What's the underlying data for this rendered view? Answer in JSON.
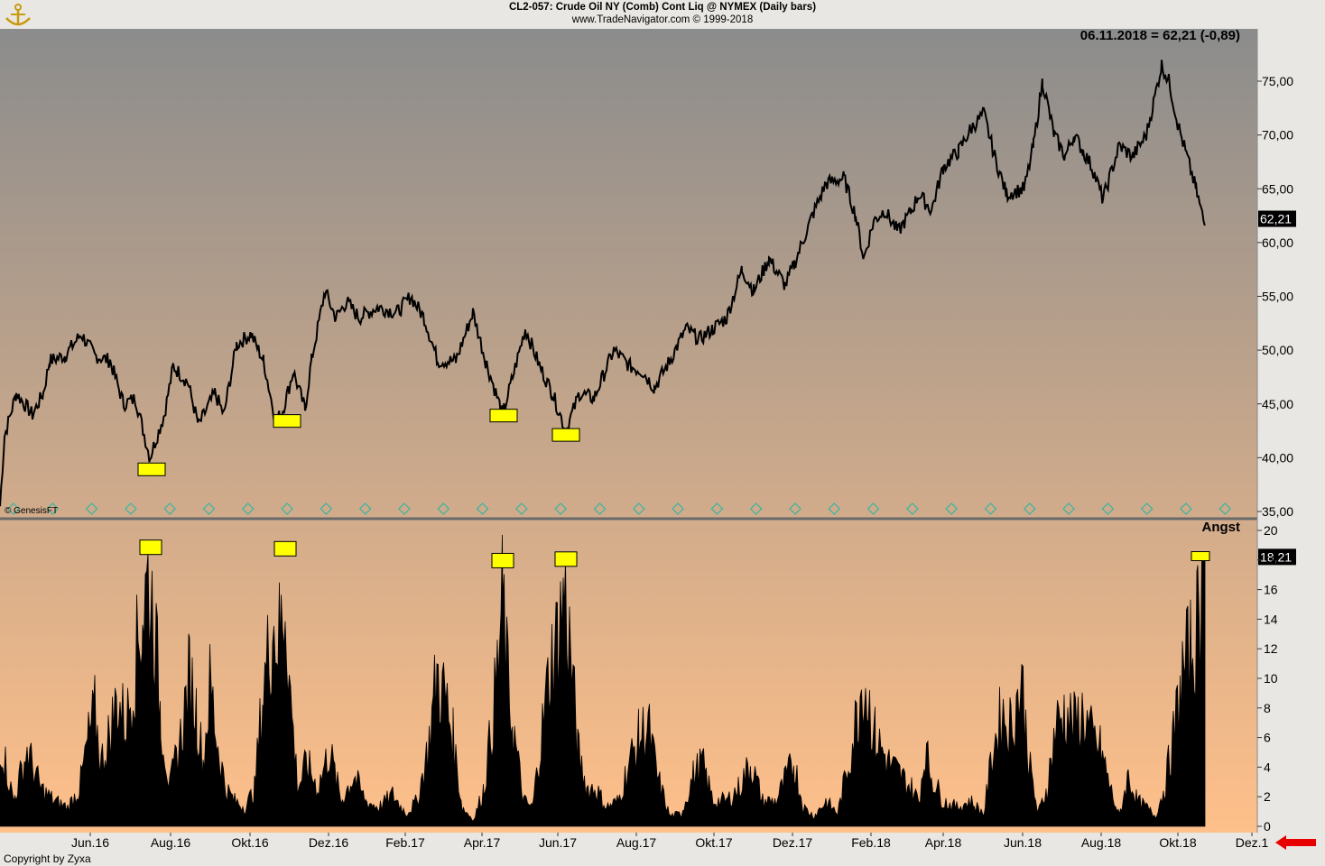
{
  "header": {
    "title": "CL2-057:  Crude Oil NY (Comb) Cont Liq @ NYMEX  (Daily bars)",
    "subtitle": "www.TradeNavigator.com © 1999-2018",
    "last_quote": "06.11.2018 = 62,21 (-0,89)"
  },
  "footer": {
    "copyright": "Copyright by Zyxa"
  },
  "watermark": "© GenesisFT",
  "colors": {
    "bg_top": "#8b8c8c",
    "bg_bottom": "#ffc08a",
    "line": "#000000",
    "marker": "#ffff00",
    "axis_bg": "#e9e7e3",
    "arrow": "#e80000",
    "diamond": "#33b6a0"
  },
  "chart_data": [
    {
      "type": "line",
      "ylim": [
        35,
        77
      ],
      "yticks": [
        "35,00",
        "40,00",
        "45,00",
        "50,00",
        "55,00",
        "60,00",
        "65,00",
        "70,00",
        "75,00"
      ],
      "last_value_label": "62,21",
      "x_labels": [
        "Jun.16",
        "Aug.16",
        "Okt.16",
        "Dez.16",
        "Feb.17",
        "Apr.17",
        "Jun.17",
        "Aug.17",
        "Okt.17",
        "Dez.17",
        "Feb.18",
        "Apr.18",
        "Jun.18",
        "Aug.18",
        "Okt.18",
        "Dez.1"
      ],
      "series": [
        {
          "values": [
            [
              0,
              35.5
            ],
            [
              5,
              42
            ],
            [
              18,
              46
            ],
            [
              36,
              44
            ],
            [
              48,
              46
            ],
            [
              55,
              49
            ],
            [
              72,
              49.5
            ],
            [
              90,
              51.5
            ],
            [
              105,
              49.5
            ],
            [
              122,
              49
            ],
            [
              137,
              45
            ],
            [
              150,
              45.5
            ],
            [
              166,
              40
            ],
            [
              182,
              44
            ],
            [
              192,
              48.5
            ],
            [
              208,
              47
            ],
            [
              220,
              43
            ],
            [
              238,
              46
            ],
            [
              248,
              44
            ],
            [
              262,
              50.5
            ],
            [
              278,
              51.5
            ],
            [
              292,
              49
            ],
            [
              305,
              43.5
            ],
            [
              312,
              44
            ],
            [
              325,
              48
            ],
            [
              338,
              44.5
            ],
            [
              345,
              49
            ],
            [
              360,
              55.5
            ],
            [
              372,
              53
            ],
            [
              384,
              54.5
            ],
            [
              398,
              53
            ],
            [
              418,
              54
            ],
            [
              440,
              53.5
            ],
            [
              455,
              55
            ],
            [
              470,
              53
            ],
            [
              485,
              49
            ],
            [
              505,
              49
            ],
            [
              524,
              53.5
            ],
            [
              538,
              49
            ],
            [
              557,
              44
            ],
            [
              568,
              47.5
            ],
            [
              582,
              52
            ],
            [
              598,
              48.5
            ],
            [
              612,
              46
            ],
            [
              627,
              42.5
            ],
            [
              642,
              46
            ],
            [
              658,
              45.5
            ],
            [
              680,
              50
            ],
            [
              698,
              48.5
            ],
            [
              712,
              48
            ],
            [
              725,
              46.5
            ],
            [
              742,
              49
            ],
            [
              760,
              52
            ],
            [
              775,
              51
            ],
            [
              790,
              52
            ],
            [
              805,
              53
            ],
            [
              822,
              57.5
            ],
            [
              835,
              55.5
            ],
            [
              852,
              58.5
            ],
            [
              870,
              56
            ],
            [
              880,
              58
            ],
            [
              900,
              62.5
            ],
            [
              915,
              65.5
            ],
            [
              935,
              66
            ],
            [
              948,
              62.5
            ],
            [
              957,
              58.5
            ],
            [
              968,
              62
            ],
            [
              980,
              63
            ],
            [
              995,
              61
            ],
            [
              1010,
              63
            ],
            [
              1018,
              64.5
            ],
            [
              1032,
              63
            ],
            [
              1045,
              67
            ],
            [
              1062,
              68.5
            ],
            [
              1075,
              70.5
            ],
            [
              1090,
              72
            ],
            [
              1102,
              68
            ],
            [
              1115,
              64.5
            ],
            [
              1135,
              65
            ],
            [
              1145,
              69
            ],
            [
              1155,
              75
            ],
            [
              1168,
              70
            ],
            [
              1180,
              68
            ],
            [
              1190,
              70
            ],
            [
              1200,
              68.5
            ],
            [
              1210,
              67
            ],
            [
              1222,
              64
            ],
            [
              1240,
              69
            ],
            [
              1255,
              68
            ],
            [
              1270,
              70
            ],
            [
              1278,
              73
            ],
            [
              1287,
              76.5
            ],
            [
              1295,
              75
            ],
            [
              1305,
              71
            ],
            [
              1315,
              68
            ],
            [
              1325,
              65
            ],
            [
              1335,
              61.5
            ]
          ]
        }
      ],
      "markers": [
        [
          168,
          39
        ],
        [
          318,
          43.5
        ],
        [
          558,
          44
        ],
        [
          627,
          42.2
        ]
      ]
    },
    {
      "type": "area",
      "title": "Angst",
      "ylim": [
        0,
        20
      ],
      "yticks": [
        "0",
        "2",
        "4",
        "6",
        "8",
        "10",
        "12",
        "14",
        "16",
        "18",
        "20"
      ],
      "last_value_label": "18,21",
      "series": [
        {
          "values": [
            [
              0,
              7
            ],
            [
              15,
              2
            ],
            [
              30,
              6
            ],
            [
              45,
              3
            ],
            [
              60,
              2
            ],
            [
              75,
              1.5
            ],
            [
              88,
              3
            ],
            [
              98,
              7
            ],
            [
              105,
              9
            ],
            [
              112,
              5
            ],
            [
              120,
              7
            ],
            [
              130,
              10
            ],
            [
              140,
              8
            ],
            [
              150,
              13
            ],
            [
              158,
              17
            ],
            [
              164,
              19.5
            ],
            [
              170,
              17
            ],
            [
              178,
              9
            ],
            [
              188,
              3
            ],
            [
              200,
              7
            ],
            [
              210,
              12
            ],
            [
              218,
              9
            ],
            [
              225,
              5
            ],
            [
              233,
              11.5
            ],
            [
              240,
              7
            ],
            [
              250,
              3
            ],
            [
              260,
              2
            ],
            [
              272,
              1.5
            ],
            [
              282,
              3
            ],
            [
              292,
              11
            ],
            [
              302,
              16
            ],
            [
              310,
              15
            ],
            [
              316,
              18.5
            ],
            [
              322,
              10
            ],
            [
              330,
              3
            ],
            [
              340,
              5
            ],
            [
              352,
              3
            ],
            [
              365,
              6
            ],
            [
              378,
              2
            ],
            [
              392,
              4
            ],
            [
              405,
              2
            ],
            [
              420,
              1.5
            ],
            [
              435,
              2.5
            ],
            [
              450,
              1
            ],
            [
              462,
              2
            ],
            [
              474,
              6
            ],
            [
              484,
              12
            ],
            [
              494,
              10
            ],
            [
              502,
              7
            ],
            [
              512,
              1.5
            ],
            [
              525,
              0.5
            ],
            [
              536,
              3
            ],
            [
              545,
              8
            ],
            [
              552,
              13
            ],
            [
              557,
              18
            ],
            [
              563,
              11
            ],
            [
              570,
              7
            ],
            [
              580,
              2
            ],
            [
              590,
              1.5
            ],
            [
              598,
              6
            ],
            [
              610,
              13
            ],
            [
              618,
              15
            ],
            [
              625,
              18.5
            ],
            [
              632,
              14
            ],
            [
              640,
              6
            ],
            [
              650,
              3
            ],
            [
              660,
              3
            ],
            [
              672,
              1.5
            ],
            [
              685,
              2
            ],
            [
              697,
              5
            ],
            [
              708,
              7
            ],
            [
              718,
              8
            ],
            [
              728,
              4
            ],
            [
              742,
              0.8
            ],
            [
              755,
              1
            ],
            [
              768,
              4
            ],
            [
              778,
              5
            ],
            [
              790,
              2
            ],
            [
              805,
              2
            ],
            [
              818,
              3
            ],
            [
              832,
              5
            ],
            [
              845,
              2
            ],
            [
              860,
              2
            ],
            [
              872,
              4
            ],
            [
              880,
              5
            ],
            [
              890,
              1.5
            ],
            [
              902,
              0.8
            ],
            [
              915,
              2
            ],
            [
              928,
              1
            ],
            [
              940,
              5
            ],
            [
              950,
              9
            ],
            [
              956,
              12
            ],
            [
              962,
              10
            ],
            [
              970,
              7
            ],
            [
              985,
              5
            ],
            [
              998,
              4
            ],
            [
              1010,
              3
            ],
            [
              1018,
              2
            ],
            [
              1025,
              6
            ],
            [
              1032,
              4
            ],
            [
              1045,
              2
            ],
            [
              1060,
              1.5
            ],
            [
              1075,
              2
            ],
            [
              1090,
              1
            ],
            [
              1100,
              6
            ],
            [
              1110,
              9
            ],
            [
              1120,
              8
            ],
            [
              1132,
              11.5
            ],
            [
              1140,
              5
            ],
            [
              1150,
              1
            ],
            [
              1160,
              3
            ],
            [
              1170,
              8
            ],
            [
              1180,
              9
            ],
            [
              1190,
              8
            ],
            [
              1200,
              9
            ],
            [
              1210,
              7
            ],
            [
              1220,
              6
            ],
            [
              1230,
              3
            ],
            [
              1240,
              0.8
            ],
            [
              1250,
              4
            ],
            [
              1260,
              2
            ],
            [
              1270,
              1.5
            ],
            [
              1280,
              0.8
            ],
            [
              1290,
              3
            ],
            [
              1300,
              7
            ],
            [
              1310,
              12
            ],
            [
              1320,
              14
            ],
            [
              1327,
              16
            ],
            [
              1333,
              18.2
            ]
          ]
        }
      ],
      "markers": [
        [
          167,
          18.8
        ],
        [
          316,
          18.7
        ],
        [
          557,
          17.9
        ],
        [
          627,
          18
        ]
      ]
    }
  ]
}
